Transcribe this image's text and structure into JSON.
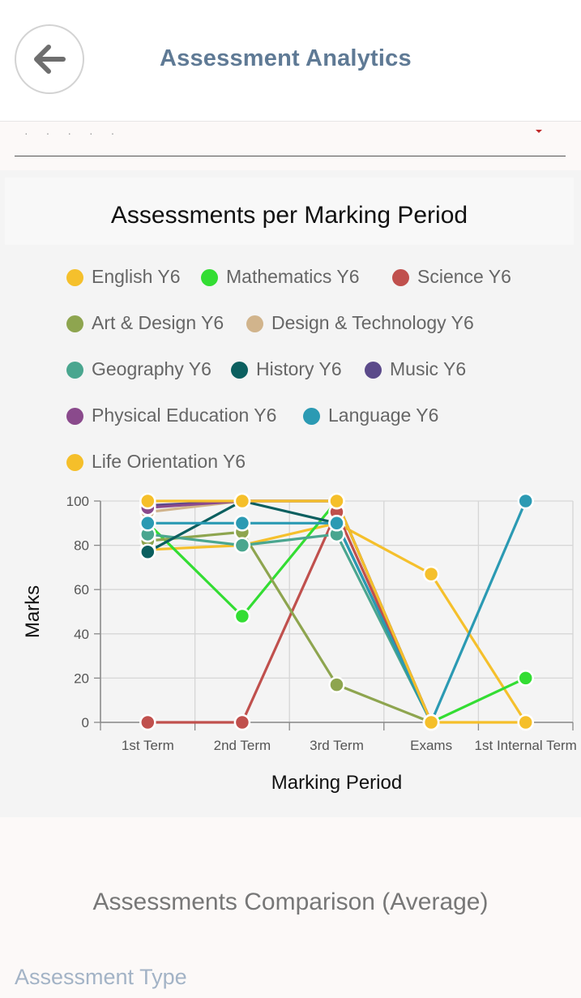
{
  "header": {
    "title": "Assessment Analytics",
    "back_icon": "arrow-left-icon"
  },
  "colors": {
    "header_title": "#5f7a95",
    "english": "#f5c02c",
    "mathematics": "#33dd33",
    "science": "#c0504d",
    "art": "#8ea54f",
    "design_tech": "#d1b48c",
    "geography": "#4aa68f",
    "history": "#0b5f5f",
    "music": "#5b4a8a",
    "pe": "#8a4a8c",
    "language": "#2b9ab3",
    "life_orientation": "#f5bf2a"
  },
  "chart_data": {
    "type": "line",
    "title": "Assessments per Marking Period",
    "xlabel": "Marking Period",
    "ylabel": "Marks",
    "ylim": [
      0,
      100
    ],
    "yticks": [
      "0",
      "20",
      "40",
      "60",
      "80",
      "100"
    ],
    "categories": [
      "1st Term",
      "2nd Term",
      "3rd Term",
      "Exams",
      "1st Internal Term"
    ],
    "grid": true,
    "legend_position": "top",
    "series": [
      {
        "name": "English Y6",
        "color": "#f5c02c",
        "values": [
          78,
          80,
          90,
          67,
          0
        ]
      },
      {
        "name": "Mathematics  Y6",
        "color": "#33dd33",
        "values": [
          90,
          48,
          100,
          0,
          20
        ]
      },
      {
        "name": "Science Y6",
        "color": "#c0504d",
        "values": [
          0,
          0,
          95,
          0,
          null
        ]
      },
      {
        "name": "Art & Design Y6",
        "color": "#8ea54f",
        "values": [
          82,
          86,
          17,
          0,
          null
        ]
      },
      {
        "name": "Design & Technology Y6",
        "color": "#d1b48c",
        "values": [
          95,
          100,
          100,
          0,
          null
        ]
      },
      {
        "name": "Geography Y6",
        "color": "#4aa68f",
        "values": [
          85,
          80,
          85,
          0,
          null
        ]
      },
      {
        "name": "History Y6",
        "color": "#0b5f5f",
        "values": [
          77,
          100,
          90,
          0,
          null
        ]
      },
      {
        "name": "Music Y6",
        "color": "#5b4a8a",
        "values": [
          98,
          100,
          100,
          0,
          null
        ]
      },
      {
        "name": "Physical Education Y6",
        "color": "#8a4a8c",
        "values": [
          97,
          100,
          100,
          0,
          null
        ]
      },
      {
        "name": "Language Y6",
        "color": "#2b9ab3",
        "values": [
          90,
          90,
          90,
          0,
          100
        ]
      },
      {
        "name": "Life Orientation Y6",
        "color": "#f5bf2a",
        "values": [
          100,
          100,
          100,
          0,
          0
        ]
      }
    ]
  },
  "sections": {
    "comparison_title": "Assessments Comparison (Average)",
    "assessment_type_label": "Assessment Type"
  }
}
